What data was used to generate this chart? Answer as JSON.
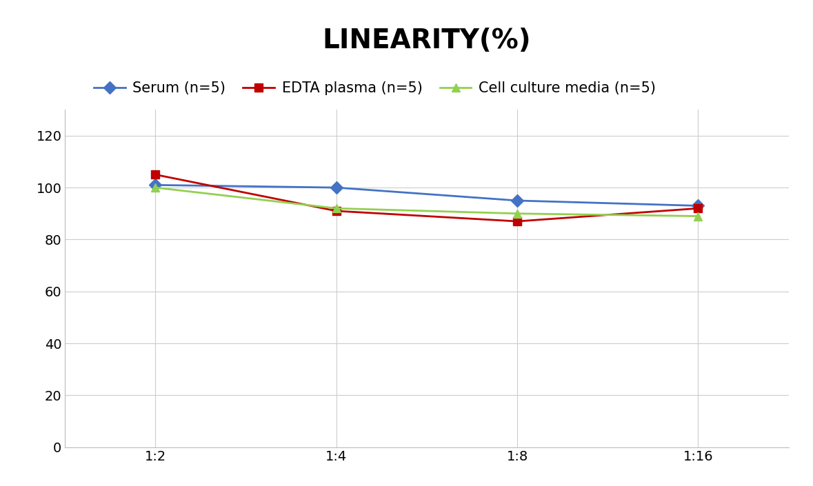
{
  "title": "LINEARITY(%)",
  "title_fontsize": 28,
  "title_fontweight": "bold",
  "x_labels": [
    "1:2",
    "1:4",
    "1:8",
    "1:16"
  ],
  "x_positions": [
    0,
    1,
    2,
    3
  ],
  "series": [
    {
      "label": "Serum (n=5)",
      "values": [
        101,
        100,
        95,
        93
      ],
      "color": "#4472C4",
      "marker": "D",
      "markersize": 9,
      "linewidth": 2.0
    },
    {
      "label": "EDTA plasma (n=5)",
      "values": [
        105,
        91,
        87,
        92
      ],
      "color": "#C00000",
      "marker": "s",
      "markersize": 9,
      "linewidth": 2.0
    },
    {
      "label": "Cell culture media (n=5)",
      "values": [
        100,
        92,
        90,
        89
      ],
      "color": "#92D050",
      "marker": "^",
      "markersize": 9,
      "linewidth": 2.0
    }
  ],
  "ylim": [
    0,
    130
  ],
  "yticks": [
    0,
    20,
    40,
    60,
    80,
    100,
    120
  ],
  "grid_color": "#CCCCCC",
  "grid_linewidth": 0.8,
  "background_color": "#FFFFFF",
  "legend_fontsize": 15,
  "tick_fontsize": 14,
  "xlim_left": -0.5,
  "xlim_right": 3.5
}
